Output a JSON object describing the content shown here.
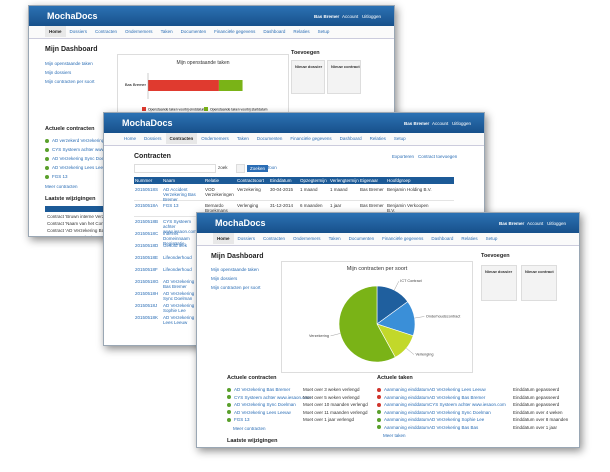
{
  "windows": [
    {
      "brand": "MochaDocs",
      "user": [
        "Bas Bremer",
        "Account",
        "Uitloggen"
      ],
      "nav": [
        "Home",
        "Dossiers",
        "Contracten",
        "Ondernemers",
        "Taken",
        "Documenten",
        "Financiële gegevens",
        "Dashboard",
        "Relaties",
        "Setup"
      ],
      "title": "Mijn Dashboard",
      "sidebar": [
        "Mijn openstaande taken",
        "Mijn dossiers",
        "Mijn contracten per soort"
      ],
      "chart": {
        "type": "bar",
        "title": "Mijn openstaande taken",
        "categories": [
          "Bas Bremer"
        ],
        "xlim": [
          0,
          11
        ],
        "series": [
          {
            "name": "Openstaande taken voorbij einddatum",
            "color": "#e03a2f",
            "values": [
              6
            ]
          },
          {
            "name": "Openstaande taken voorbij startdatum",
            "color": "#7ab317",
            "values": [
              2
            ]
          }
        ]
      },
      "add": {
        "title": "Toevoegen",
        "items": [
          "Nieuw dossier",
          "Nieuw contract"
        ]
      },
      "contracts": {
        "title": "Actuele contracten",
        "items": [
          "AD verzekerd Verzekering Bas Bre",
          "CYS Systeem achter www.iesa",
          "AD Verzekering Sync Doelman",
          "AD Verzekering Lees Leeuw",
          "FGS 13"
        ],
        "more": "Meer contracten"
      },
      "changes": {
        "title": "Laatste wijzigingen",
        "items": [
          "Contract 'Bruwn interne Verzekeri",
          "Contract 'Naam van het Contract' verw",
          "Contract 'AD Verzekering Bas Bremer'",
          "Contract 'AD verzekering Sync Doelman'"
        ]
      }
    },
    {
      "brand": "MochaDocs",
      "user": [
        "Bas Bremer",
        "Account",
        "Uitloggen"
      ],
      "nav": [
        "Home",
        "Dossiers",
        "Contracten",
        "Ondernemers",
        "Taken",
        "Documenten",
        "Financiële gegevens",
        "Dashboard",
        "Relaties",
        "Setup"
      ],
      "title": "Contracten",
      "search": "zoek",
      "buttons": [
        "Zoeken",
        "Toon"
      ],
      "links": [
        "Exporteren",
        "Contract toevoegen"
      ],
      "columns": [
        "Nummer",
        "Naam",
        "Relatie",
        "Contractsoort",
        "Einddatum",
        "Opzegtermijn",
        "Verlengtermijn",
        "Eigenaar",
        "Hoofdgroep"
      ],
      "rows": [
        [
          "20150518S",
          "AD Accident Verzekering Bas Bremer",
          "VOD Verzekeringen",
          "Verzekering",
          "30-04-2015",
          "1 maand",
          "1 maand",
          "Bas Bremer",
          "Benjamin Holding B.V."
        ],
        [
          "20150518A",
          "FGS 13",
          "Bernardo Broekmans",
          "Verlenging",
          "31-12-2014",
          "6 maanden",
          "1 jaar",
          "Bas Bremer",
          "Benjamin Verkoopen B.V."
        ]
      ],
      "more_rows": [
        [
          "20150518B",
          "CYS Systeem achter www.iesaon.com"
        ],
        [
          "20150518C",
          "Internet Domeinnaam Registratie"
        ],
        [
          "20150518D",
          "Gesofd leek"
        ],
        [
          "20150518E",
          "Lifeonderhoud"
        ],
        [
          "20150518F",
          "Lifeonderhoud"
        ],
        [
          "20150518G",
          "AD Verzekering Bas Bremer"
        ],
        [
          "20150518H",
          "AD Verzekering Sync Doelman"
        ],
        [
          "20150518J",
          "AD Verzekering Sophie Lee"
        ],
        [
          "20150518K",
          "AD Verzekering Lees Leeuw"
        ]
      ]
    },
    {
      "brand": "MochaDocs",
      "user": [
        "Bas Bremer",
        "Account",
        "Uitloggen"
      ],
      "nav": [
        "Home",
        "Dossiers",
        "Contracten",
        "Ondernemers",
        "Taken",
        "Documenten",
        "Financiële gegevens",
        "Dashboard",
        "Relaties",
        "Setup"
      ],
      "title": "Mijn Dashboard",
      "sidebar": [
        "Mijn openstaande taken",
        "Mijn dossiers",
        "Mijn contracten per soort"
      ],
      "chart": {
        "type": "pie",
        "title": "Mijn contracten per soort",
        "categories": [
          "ICT Contract",
          "Onderhoudscontract",
          "Verlenging",
          "Verzekering"
        ],
        "values": [
          15,
          15,
          12,
          58
        ],
        "colors": [
          "#1f5f9e",
          "#3a8fd8",
          "#c2d82a",
          "#7ab317"
        ]
      },
      "add": {
        "title": "Toevoegen",
        "items": [
          "Nieuw dossier",
          "Nieuw contract"
        ]
      },
      "contracts": {
        "title": "Actuele contracten",
        "items": [
          [
            "AD Verzekering Bas Bremer",
            "Moet over 3 weken verlengd"
          ],
          [
            "CYS Systeem achter www.iesaon.com",
            "Moet over 5 weken verlengd"
          ],
          [
            "AD Verzekering Sync Doelman",
            "Moet over 10 maanden verlengd"
          ],
          [
            "AD Verzekering Lees Leeuw",
            "Moet over 11 maanden verlengd"
          ],
          [
            "FGS 13",
            "Moet over 1 jaar verlengd"
          ]
        ],
        "more": "Meer contracten"
      },
      "tasks": {
        "title": "Actuele taken",
        "items": [
          [
            "Aanmaning einddatum",
            "AD Verzekering Lees Leeuw",
            "Einddatum gepasseerd"
          ],
          [
            "Aanmaning einddatum",
            "AD Verzekering Bas Bremer",
            "Einddatum gepasseerd"
          ],
          [
            "Aanmaning einddatum",
            "CYS Systeem achter www.iesaon.com",
            "Einddatum gepasseerd"
          ],
          [
            "Aanmaning einddatum",
            "AD Verzekering Sync Doelman",
            "Einddatum over 4 weken"
          ],
          [
            "Aanmaning einddatum",
            "AD Verzekering Sophie Lee",
            "Einddatum over 8 maanden"
          ],
          [
            "Aanmaning einddatum",
            "AD Verzekering Bas Bas",
            "Einddatum over 1 jaar"
          ]
        ],
        "more": "Meer taken"
      },
      "changes": {
        "title": "Laatste wijzigingen"
      }
    }
  ]
}
